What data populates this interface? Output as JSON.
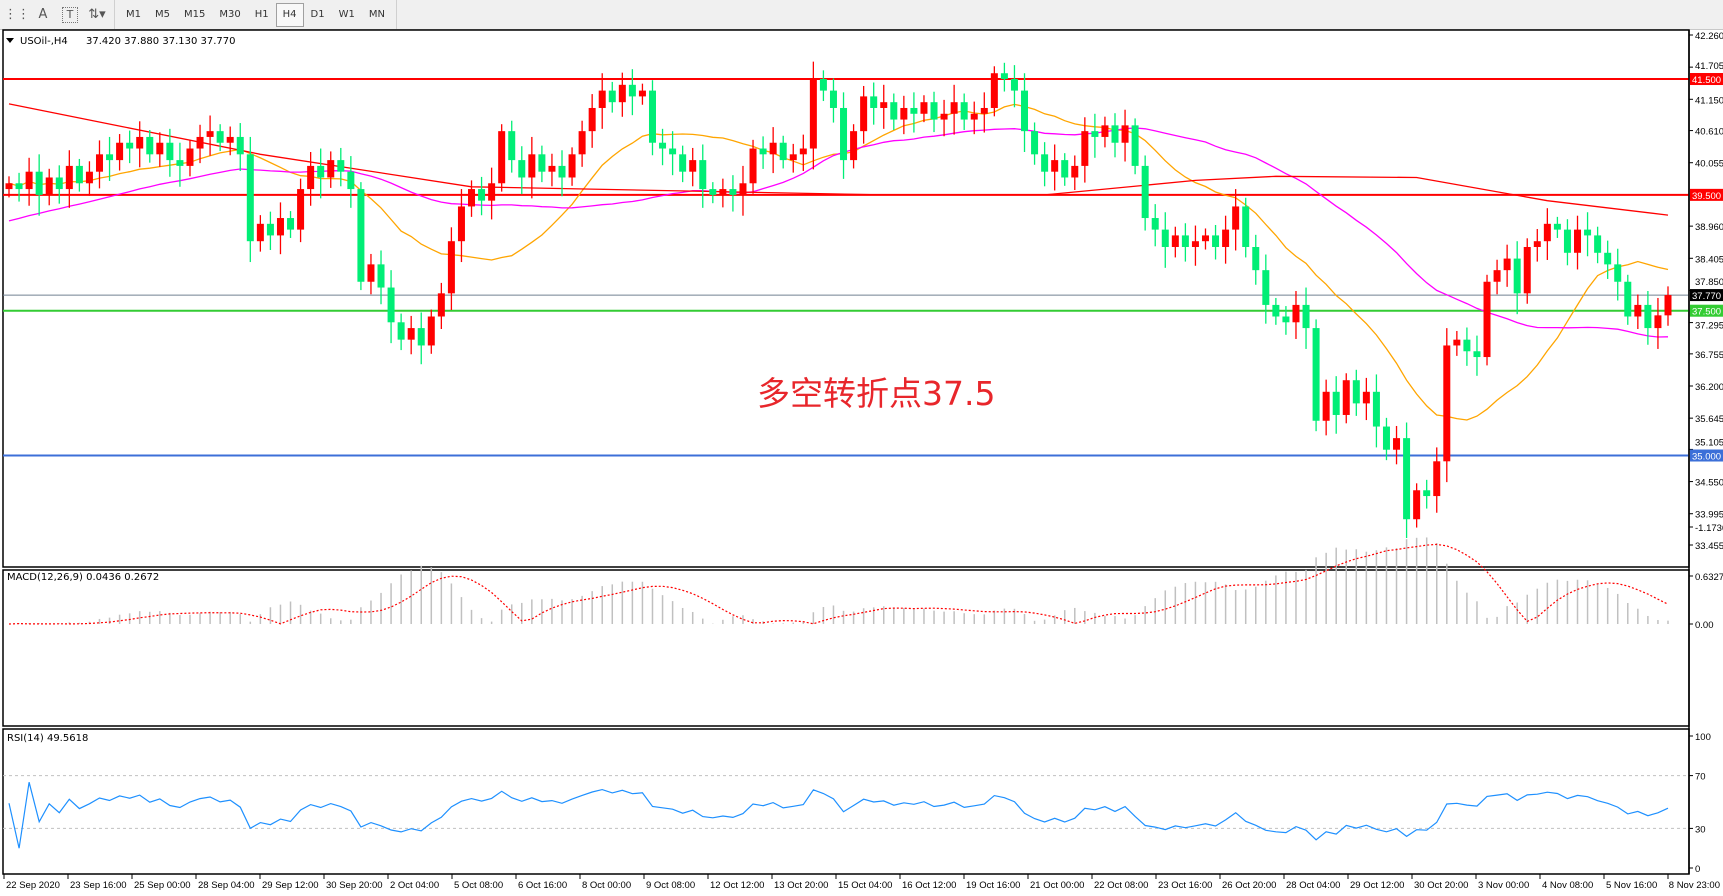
{
  "toolbar": {
    "tools": [
      {
        "icon": "line-studies-icon"
      },
      {
        "icon": "text-icon",
        "label": "A"
      },
      {
        "icon": "text-label-icon",
        "label": "T"
      },
      {
        "icon": "arrows-icon"
      }
    ],
    "timeframes": [
      "M1",
      "M5",
      "M15",
      "M30",
      "H1",
      "H4",
      "D1",
      "W1",
      "MN"
    ],
    "active_timeframe": "H4"
  },
  "chart_data": {
    "type": "candlestick",
    "symbol_header": "USOil-,H4",
    "ohlc_header": "37.420 37.880 37.130 37.770",
    "annotation": "多空转折点37.5",
    "colors": {
      "bull": "#ff0000",
      "bear": "#00ee76",
      "ma_fast": "#ffa500",
      "ma_mid": "#ff00ff",
      "ma_slow": "#ff0000"
    },
    "ylim": [
      33.455,
      42.26
    ],
    "price_ticks": [
      "42.260",
      "41.705",
      "41.150",
      "40.610",
      "40.055",
      "38.960",
      "38.405",
      "37.850",
      "37.295",
      "36.755",
      "36.200",
      "35.645",
      "35.105",
      "34.550",
      "33.995",
      "33.455"
    ],
    "closes": [
      39.7,
      39.6,
      39.9,
      39.5,
      39.8,
      39.6,
      40.0,
      39.7,
      39.9,
      40.2,
      40.1,
      40.4,
      40.3,
      40.5,
      40.2,
      40.4,
      40.1,
      40.0,
      40.3,
      40.5,
      40.6,
      40.4,
      40.5,
      40.2,
      38.7,
      39.0,
      38.8,
      39.1,
      38.9,
      39.6,
      40.0,
      39.8,
      40.1,
      39.9,
      39.6,
      38.0,
      38.3,
      37.9,
      37.3,
      37.0,
      37.2,
      36.9,
      37.4,
      37.8,
      38.7,
      39.3,
      39.6,
      39.4,
      39.7,
      40.6,
      40.1,
      39.8,
      40.2,
      39.9,
      40.0,
      39.8,
      40.2,
      40.6,
      41.0,
      41.3,
      41.1,
      41.4,
      41.2,
      41.3,
      40.4,
      40.3,
      40.2,
      39.9,
      40.1,
      39.6,
      39.5,
      39.6,
      39.5,
      39.7,
      40.3,
      40.2,
      40.4,
      40.1,
      40.2,
      40.3,
      41.5,
      41.3,
      41.0,
      40.1,
      40.6,
      41.2,
      41.0,
      41.1,
      40.8,
      41.0,
      40.9,
      41.1,
      40.8,
      40.9,
      41.1,
      40.8,
      40.9,
      41.0,
      41.6,
      41.5,
      41.3,
      40.6,
      40.2,
      39.9,
      40.1,
      39.8,
      40.0,
      40.6,
      40.5,
      40.7,
      40.4,
      40.7,
      40.0,
      39.1,
      38.9,
      38.6,
      38.8,
      38.6,
      38.7,
      38.8,
      38.6,
      38.9,
      39.3,
      38.6,
      38.2,
      37.6,
      37.4,
      37.3,
      37.6,
      37.2,
      35.6,
      36.1,
      35.7,
      36.3,
      35.9,
      36.1,
      35.5,
      35.1,
      35.3,
      33.9,
      34.4,
      34.3,
      34.9,
      36.9,
      37.0,
      36.8,
      36.7,
      38.0,
      38.2,
      38.4,
      37.8,
      38.6,
      38.7,
      39.0,
      38.9,
      38.5,
      38.9,
      38.8,
      38.5,
      38.3,
      38.0,
      37.4,
      37.6,
      37.2,
      37.42,
      37.77
    ],
    "ma_slow_points": [
      [
        0,
        41.07
      ],
      [
        25,
        40.2
      ],
      [
        46,
        39.64
      ],
      [
        87,
        39.5
      ],
      [
        103,
        39.5
      ],
      [
        118,
        39.75
      ],
      [
        126,
        39.82
      ],
      [
        140,
        39.8
      ],
      [
        153,
        39.4
      ],
      [
        165,
        39.15
      ]
    ],
    "levels": [
      {
        "price": 41.5,
        "label": "41.500",
        "color": "#ff0000"
      },
      {
        "price": 39.5,
        "label": "39.500",
        "color": "#ff0000"
      },
      {
        "price": 37.5,
        "label": "37.500",
        "color": "#33cc33"
      },
      {
        "price": 35.0,
        "label": "35.000",
        "color": "#3c6fd8"
      }
    ],
    "current_price": {
      "price": 37.77,
      "label": "37.770",
      "color": "#708090"
    },
    "x_labels": [
      "22 Sep 2020",
      "23 Sep 16:00",
      "25 Sep 00:00",
      "28 Sep 04:00",
      "29 Sep 12:00",
      "30 Sep 20:00",
      "2 Oct 04:00",
      "5 Oct 08:00",
      "6 Oct 16:00",
      "8 Oct 00:00",
      "9 Oct 08:00",
      "12 Oct 12:00",
      "13 Oct 20:00",
      "15 Oct 04:00",
      "16 Oct 12:00",
      "19 Oct 16:00",
      "21 Oct 00:00",
      "22 Oct 08:00",
      "23 Oct 16:00",
      "26 Oct 20:00",
      "28 Oct 04:00",
      "29 Oct 12:00",
      "30 Oct 20:00",
      "3 Nov 00:00",
      "4 Nov 08:00",
      "5 Nov 16:00",
      "8 Nov 23:00"
    ],
    "macd": {
      "header": "MACD(12,26,9) 0.0436 0.2672",
      "ticks": [
        "0.6327",
        "0.00",
        "-1.1736"
      ],
      "ylim": [
        -1.1736,
        0.6327
      ]
    },
    "rsi": {
      "header": "RSI(14) 49.5618",
      "ticks": [
        "100",
        "70",
        "30",
        "0"
      ],
      "levels": [
        70,
        30
      ],
      "color": "#1e90ff"
    }
  }
}
